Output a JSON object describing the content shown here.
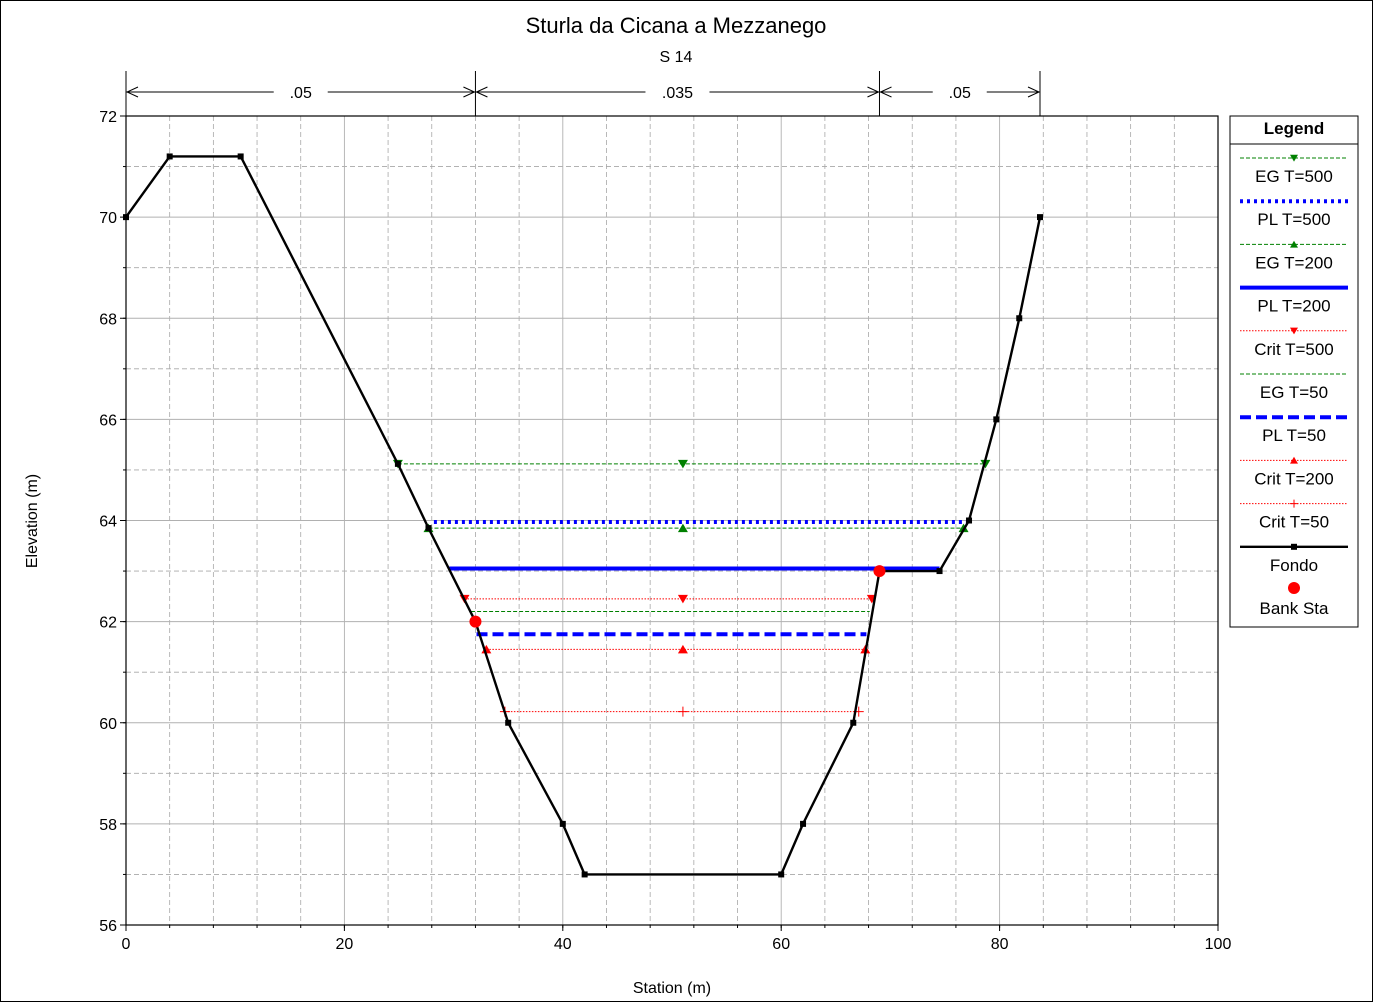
{
  "chart_data": {
    "type": "line",
    "title": "Sturla da Cicana a Mezzanego",
    "subtitle": "S 14",
    "xlabel": "Station (m)",
    "ylabel": "Elevation (m)",
    "xlim": [
      0,
      100
    ],
    "ylim": [
      56,
      72
    ],
    "x_ticks": [
      0,
      20,
      40,
      60,
      80,
      100
    ],
    "y_ticks": [
      56,
      58,
      60,
      62,
      64,
      66,
      68,
      70,
      72
    ],
    "x_minor_step": 4,
    "y_minor_step": 1,
    "grid": true,
    "legend_title": "Legend",
    "legend_position": "right",
    "manning": [
      {
        "label": ".05",
        "from": 0,
        "to": 32
      },
      {
        "label": ".035",
        "from": 32,
        "to": 69
      },
      {
        "label": ".05",
        "from": 69,
        "to": 83.7
      }
    ],
    "series": [
      {
        "name": "EG T=500",
        "color": "#008000",
        "style": "thin-dashed",
        "marker": "triangle-down",
        "x": [
          24.9,
          51,
          78.7
        ],
        "y": [
          65.12,
          65.12,
          65.12
        ]
      },
      {
        "name": "PL T=500",
        "color": "#0000ff",
        "style": "dotted",
        "marker": "none",
        "x": [
          28.2,
          77
        ],
        "y": [
          63.97,
          63.97
        ]
      },
      {
        "name": "EG T=200",
        "color": "#008000",
        "style": "thin-dashed",
        "marker": "triangle-up",
        "x": [
          27.7,
          51,
          76.7
        ],
        "y": [
          63.85,
          63.85,
          63.85
        ]
      },
      {
        "name": "PL T=200",
        "color": "#0000ff",
        "style": "solid-thick",
        "marker": "none",
        "x": [
          29.6,
          74.5
        ],
        "y": [
          63.05,
          63.05
        ]
      },
      {
        "name": "Crit T=500",
        "color": "#ff0000",
        "style": "thin-dotted",
        "marker": "triangle-down",
        "x": [
          31,
          51,
          68.3
        ],
        "y": [
          62.45,
          62.45,
          62.45
        ]
      },
      {
        "name": "EG T=50",
        "color": "#008000",
        "style": "thin-dashed",
        "marker": "none",
        "x": [
          31.6,
          68.1
        ],
        "y": [
          62.2,
          62.2
        ]
      },
      {
        "name": "PL T=50",
        "color": "#0000ff",
        "style": "dashed",
        "marker": "none",
        "x": [
          32.1,
          67.8
        ],
        "y": [
          61.75,
          61.75
        ]
      },
      {
        "name": "Crit T=200",
        "color": "#ff0000",
        "style": "thin-dotted",
        "marker": "triangle-up",
        "x": [
          33,
          51,
          67.7
        ],
        "y": [
          61.45,
          61.45,
          61.45
        ]
      },
      {
        "name": "Crit T=50",
        "color": "#ff0000",
        "style": "thin-dotted",
        "marker": "plus",
        "x": [
          34.7,
          51,
          67.1
        ],
        "y": [
          60.22,
          60.22,
          60.22
        ]
      },
      {
        "name": "Fondo",
        "color": "#000000",
        "style": "solid",
        "marker": "square",
        "x": [
          0,
          4,
          10.5,
          24.9,
          27.7,
          32,
          35,
          40,
          42,
          60,
          62,
          66.6,
          69,
          74.5,
          77.2,
          79.7,
          81.8,
          83.7
        ],
        "y": [
          70,
          71.2,
          71.2,
          65.12,
          63.85,
          62,
          60,
          58,
          57,
          57,
          58,
          60,
          63,
          63,
          64,
          66,
          68,
          70
        ]
      },
      {
        "name": "Bank Sta",
        "color": "#ff0000",
        "style": "none",
        "marker": "circle",
        "x": [
          32,
          69
        ],
        "y": [
          62,
          63
        ]
      }
    ]
  }
}
